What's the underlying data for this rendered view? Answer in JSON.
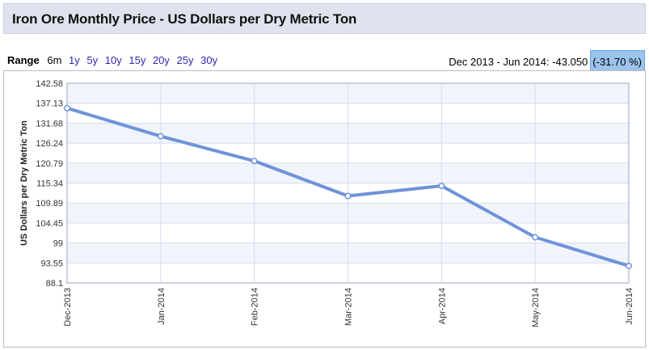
{
  "header": {
    "title": "Iron Ore Monthly Price - US Dollars per Dry Metric Ton"
  },
  "range": {
    "label": "Range",
    "options": [
      {
        "label": "6m",
        "active": true
      },
      {
        "label": "1y",
        "active": false
      },
      {
        "label": "5y",
        "active": false
      },
      {
        "label": "10y",
        "active": false
      },
      {
        "label": "15y",
        "active": false
      },
      {
        "label": "20y",
        "active": false
      },
      {
        "label": "25y",
        "active": false
      },
      {
        "label": "30y",
        "active": false
      }
    ]
  },
  "summary": {
    "text": "Dec 2013 - Jun 2014: -43.050",
    "change": "(-31.70 %)"
  },
  "colors": {
    "line": "#6f93d9",
    "band": "#f2f4fb",
    "grid": "#d4dcef",
    "highlight": "#9bc3ec"
  },
  "chart_data": {
    "type": "line",
    "title": "Iron Ore Monthly Price - US Dollars per Dry Metric Ton",
    "xlabel": "",
    "ylabel": "US Dollars per Dry Metric Ton",
    "categories": [
      "Dec-2013",
      "Jan-2014",
      "Feb-2014",
      "Mar-2014",
      "Apr-2014",
      "May-2014",
      "Jun-2014"
    ],
    "yticks": [
      "88.1",
      "93.55",
      "99",
      "104.45",
      "109.89",
      "115.34",
      "120.79",
      "126.24",
      "131.68",
      "137.13",
      "142.58"
    ],
    "ylim": [
      88.1,
      142.58
    ],
    "grid": true,
    "series": [
      {
        "values": [
          135.79,
          128.12,
          121.37,
          111.83,
          114.58,
          100.56,
          92.74
        ]
      }
    ]
  }
}
